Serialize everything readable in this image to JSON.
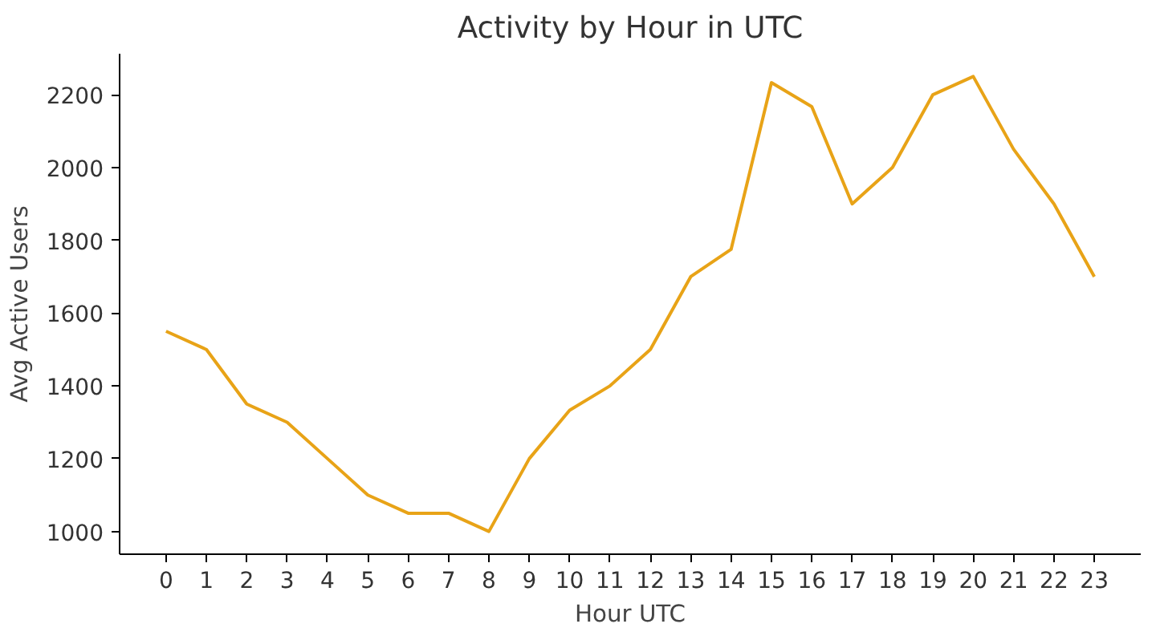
{
  "chart_data": {
    "type": "line",
    "title": "Activity by Hour in UTC",
    "xlabel": "Hour UTC",
    "ylabel": "Avg Active Users",
    "x": [
      0,
      1,
      2,
      3,
      4,
      5,
      6,
      7,
      8,
      9,
      10,
      11,
      12,
      13,
      14,
      15,
      16,
      17,
      18,
      19,
      20,
      21,
      22,
      23
    ],
    "series": [
      {
        "color": "#e8a317",
        "values": [
          1550,
          1500,
          1350,
          1300,
          1200,
          1100,
          1050,
          1050,
          1000,
          1200,
          1333,
          1400,
          1500,
          1700,
          1775,
          2233,
          2167,
          1900,
          2000,
          2200,
          2250,
          2050,
          1900,
          1700
        ]
      }
    ],
    "xlim": [
      -1.15,
      24.15
    ],
    "ylim": [
      937.5,
      2312.5
    ],
    "xticks": [
      0,
      1,
      2,
      3,
      4,
      5,
      6,
      7,
      8,
      9,
      10,
      11,
      12,
      13,
      14,
      15,
      16,
      17,
      18,
      19,
      20,
      21,
      22,
      23
    ],
    "yticks": [
      1000,
      1200,
      1400,
      1600,
      1800,
      2000,
      2200
    ],
    "grid": false,
    "line_style": "solid",
    "marker": "none"
  }
}
